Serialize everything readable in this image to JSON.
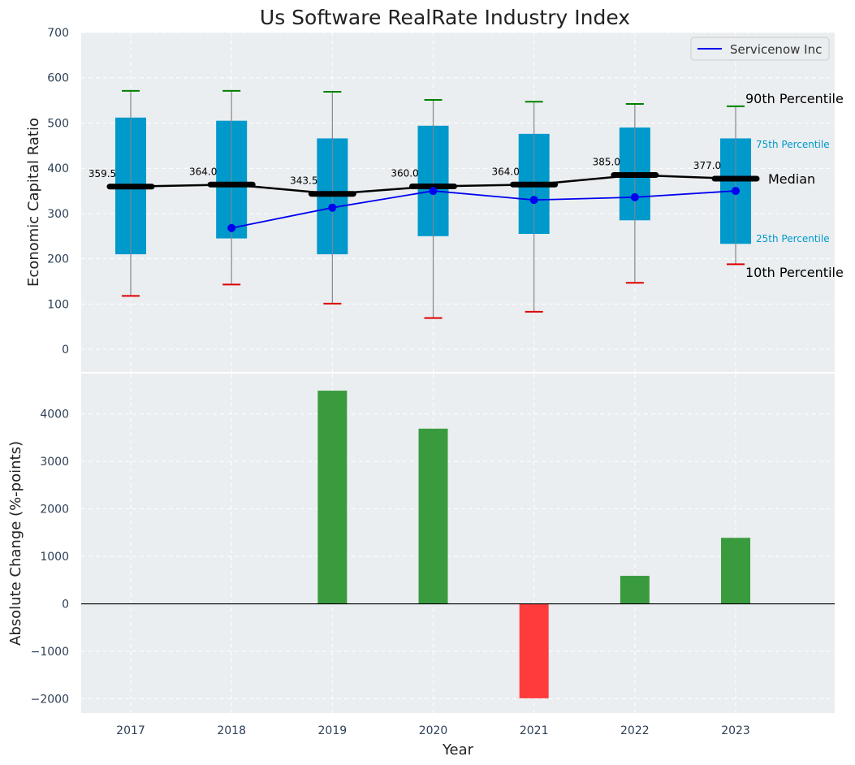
{
  "chart_data": [
    {
      "type": "box",
      "title": "Us Software RealRate Industry Index",
      "xlabel": "",
      "ylabel": "Economic Capital Ratio",
      "ylim": [
        -50,
        700
      ],
      "yticks": [
        0,
        100,
        200,
        300,
        400,
        500,
        600,
        700
      ],
      "categories": [
        "2017",
        "2018",
        "2019",
        "2020",
        "2021",
        "2022",
        "2023"
      ],
      "boxes": [
        {
          "year": "2017",
          "p10": 118,
          "p25": 210,
          "median": 359.5,
          "p75": 512,
          "p90": 571,
          "median_label": "359.5"
        },
        {
          "year": "2018",
          "p10": 143,
          "p25": 245,
          "median": 364.0,
          "p75": 505,
          "p90": 571,
          "median_label": "364.0"
        },
        {
          "year": "2019",
          "p10": 101,
          "p25": 210,
          "median": 343.5,
          "p75": 466,
          "p90": 569,
          "median_label": "343.5"
        },
        {
          "year": "2020",
          "p10": 69,
          "p25": 250,
          "median": 360.0,
          "p75": 494,
          "p90": 551,
          "median_label": "360.0"
        },
        {
          "year": "2021",
          "p10": 83,
          "p25": 255,
          "median": 364.0,
          "p75": 476,
          "p90": 547,
          "median_label": "364.0"
        },
        {
          "year": "2022",
          "p10": 147,
          "p25": 285,
          "median": 385.0,
          "p75": 490,
          "p90": 542,
          "median_label": "385.0"
        },
        {
          "year": "2023",
          "p10": 188,
          "p25": 233,
          "median": 377.0,
          "p75": 466,
          "p90": 537,
          "median_label": "377.0"
        }
      ],
      "series": [
        {
          "name": "Servicenow Inc",
          "color": "#0000ee",
          "points": [
            {
              "year": "2018",
              "value": 268
            },
            {
              "year": "2019",
              "value": 313
            },
            {
              "year": "2020",
              "value": 350
            },
            {
              "year": "2021",
              "value": 330
            },
            {
              "year": "2022",
              "value": 336
            },
            {
              "year": "2023",
              "value": 350
            }
          ]
        }
      ],
      "legend": {
        "entries": [
          "Servicenow Inc"
        ],
        "placement": "top-right"
      },
      "annotations": {
        "p90": "90th Percentile",
        "p75": "75th Percentile",
        "median": "Median",
        "p25": "25th Percentile",
        "p10": "10th Percentile"
      },
      "colors": {
        "box": "#0099cc",
        "median": "#000000",
        "p90_cap": "#008000",
        "p10_cap": "#dd0000",
        "whisker": "#888888"
      },
      "grid": true
    },
    {
      "type": "bar",
      "title": "",
      "xlabel": "Year",
      "ylabel": "Absolute Change (%-points)",
      "ylim": [
        -2300,
        4850
      ],
      "yticks": [
        -2000,
        -1000,
        0,
        1000,
        2000,
        3000,
        4000
      ],
      "ytick_labels": [
        "−2000",
        "−1000",
        "0",
        "1000",
        "2000",
        "3000",
        "4000"
      ],
      "categories": [
        "2017",
        "2018",
        "2019",
        "2020",
        "2021",
        "2022",
        "2023"
      ],
      "values": [
        0,
        0,
        4490,
        3690,
        -1990,
        590,
        1390
      ],
      "colors": {
        "positive": "#3a9b3e",
        "negative": "#ff3b3b"
      },
      "grid": true
    }
  ]
}
